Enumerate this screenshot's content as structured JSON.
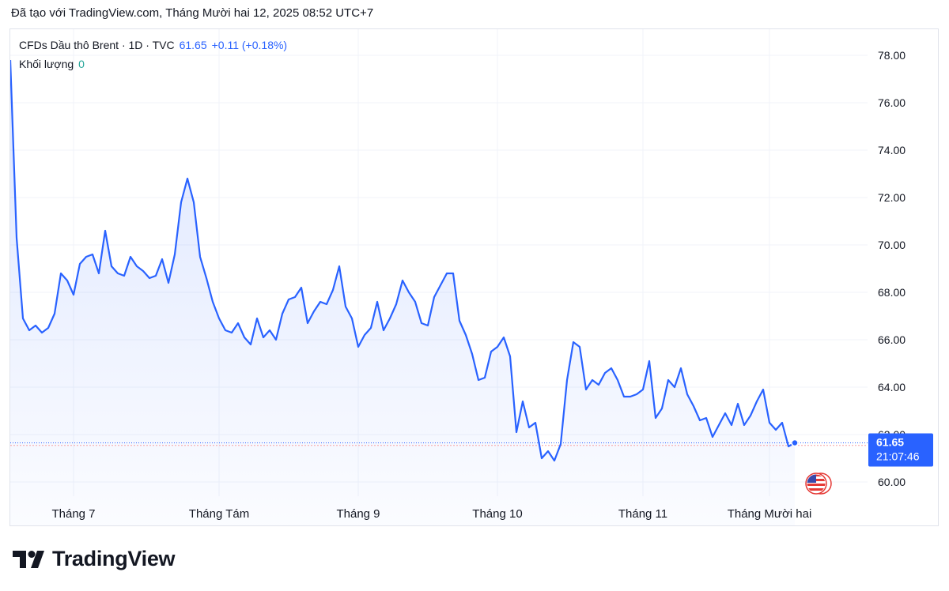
{
  "header": {
    "created_text": "Đã tạo với TradingView.com, Tháng Mười hai 12, 2025 08:52 UTC+7"
  },
  "legend": {
    "symbol": "CFDs Dầu thô Brent · 1D · TVC",
    "price": "61.65",
    "change": "+0.11 (+0.18%)",
    "volume_label": "Khối lượng",
    "volume_value": "0"
  },
  "price_badge": {
    "price": "61.65",
    "countdown": "21:07:46"
  },
  "brand": {
    "name": "TradingView"
  },
  "colors": {
    "line": "#2962ff",
    "badge": "#2962ff",
    "grid": "#f0f3fa",
    "volume": "#26a69a"
  },
  "chart_data": {
    "type": "area",
    "ylim": [
      59.3,
      79.5
    ],
    "y_ticks": [
      60,
      62,
      64,
      66,
      68,
      70,
      72,
      74,
      76,
      78
    ],
    "y_tick_labels": [
      "60.00",
      "62.00",
      "64.00",
      "66.00",
      "68.00",
      "70.00",
      "72.00",
      "74.00",
      "76.00",
      "78.00"
    ],
    "x_ticks": [
      {
        "index": 10,
        "label": "Tháng 7"
      },
      {
        "index": 33,
        "label": "Tháng Tám"
      },
      {
        "index": 55,
        "label": "Tháng 9"
      },
      {
        "index": 77,
        "label": "Tháng 10"
      },
      {
        "index": 100,
        "label": "Tháng 11"
      },
      {
        "index": 120,
        "label": "Tháng Mười hai"
      }
    ],
    "last_price": 61.65,
    "values": [
      77.8,
      70.3,
      66.9,
      66.4,
      66.6,
      66.3,
      66.5,
      67.1,
      68.8,
      68.5,
      67.9,
      69.2,
      69.5,
      69.6,
      68.8,
      70.6,
      69.1,
      68.8,
      68.7,
      69.5,
      69.1,
      68.9,
      68.6,
      68.7,
      69.4,
      68.4,
      69.6,
      71.8,
      72.8,
      71.8,
      69.5,
      68.6,
      67.6,
      66.9,
      66.4,
      66.3,
      66.7,
      66.1,
      65.8,
      66.9,
      66.1,
      66.4,
      66.0,
      67.1,
      67.7,
      67.8,
      68.2,
      66.7,
      67.2,
      67.6,
      67.5,
      68.1,
      69.1,
      67.4,
      66.9,
      65.7,
      66.2,
      66.5,
      67.6,
      66.4,
      66.9,
      67.5,
      68.5,
      68.0,
      67.6,
      66.7,
      66.6,
      67.8,
      68.3,
      68.8,
      68.8,
      66.8,
      66.2,
      65.4,
      64.3,
      64.4,
      65.5,
      65.7,
      66.1,
      65.3,
      62.1,
      63.4,
      62.3,
      62.5,
      61.0,
      61.3,
      60.9,
      61.6,
      64.3,
      65.9,
      65.7,
      63.9,
      64.3,
      64.1,
      64.6,
      64.8,
      64.3,
      63.6,
      63.6,
      63.7,
      63.9,
      65.1,
      62.7,
      63.1,
      64.3,
      64.0,
      64.8,
      63.7,
      63.2,
      62.6,
      62.7,
      61.9,
      62.4,
      62.9,
      62.4,
      63.3,
      62.4,
      62.8,
      63.4,
      63.9,
      62.5,
      62.2,
      62.5,
      61.5,
      61.65
    ]
  }
}
